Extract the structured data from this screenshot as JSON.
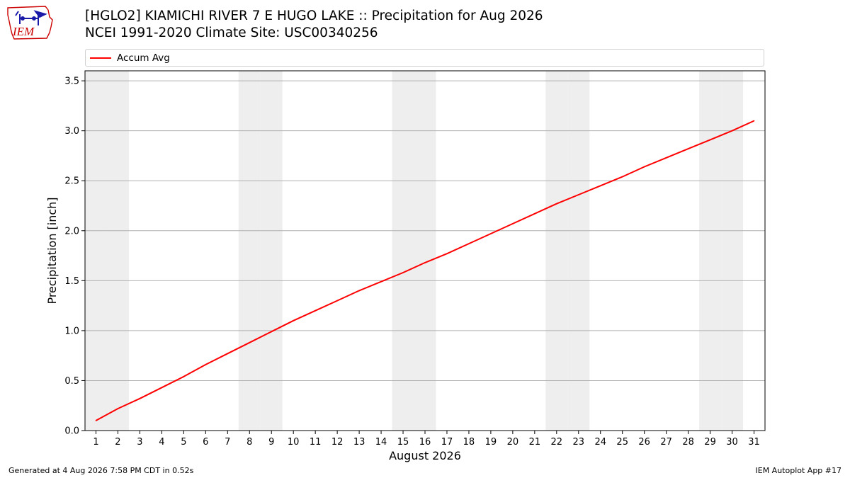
{
  "header": {
    "logo_text": "IEM",
    "title_line1": "[HGLO2] KIAMICHI RIVER 7 E HUGO LAKE :: Precipitation for Aug 2026",
    "title_line2": "NCEI 1991-2020 Climate Site: USC00340256"
  },
  "footer": {
    "left": "Generated at 4 Aug 2026 7:58 PM CDT in 0.52s",
    "right": "IEM Autoplot App #17"
  },
  "colors": {
    "series": "#ff0000",
    "weekend_band": "#eeeeee",
    "grid": "#b0b0b0",
    "logo": "#cc0000"
  },
  "chart_data": {
    "type": "line",
    "xlabel": "August 2026",
    "ylabel": "Precipitation [inch]",
    "xlim": [
      0.5,
      31.5
    ],
    "ylim": [
      0,
      3.6
    ],
    "x": [
      1,
      2,
      3,
      4,
      5,
      6,
      7,
      8,
      9,
      10,
      11,
      12,
      13,
      14,
      15,
      16,
      17,
      18,
      19,
      20,
      21,
      22,
      23,
      24,
      25,
      26,
      27,
      28,
      29,
      30,
      31
    ],
    "x_tick_labels": [
      "1",
      "2",
      "3",
      "4",
      "5",
      "6",
      "7",
      "8",
      "9",
      "10",
      "11",
      "12",
      "13",
      "14",
      "15",
      "16",
      "17",
      "18",
      "19",
      "20",
      "21",
      "22",
      "23",
      "24",
      "25",
      "26",
      "27",
      "28",
      "29",
      "30",
      "31"
    ],
    "y_ticks": [
      0.0,
      0.5,
      1.0,
      1.5,
      2.0,
      2.5,
      3.0,
      3.5
    ],
    "y_tick_labels": [
      "0.0",
      "0.5",
      "1.0",
      "1.5",
      "2.0",
      "2.5",
      "3.0",
      "3.5"
    ],
    "grid": "horizontal",
    "legend": "top",
    "weekend_days": [
      1,
      2,
      8,
      9,
      15,
      16,
      22,
      23,
      29,
      30
    ],
    "series": [
      {
        "name": "Accum Avg",
        "values": [
          0.1,
          0.22,
          0.32,
          0.43,
          0.54,
          0.66,
          0.77,
          0.88,
          0.99,
          1.1,
          1.2,
          1.3,
          1.4,
          1.49,
          1.58,
          1.68,
          1.77,
          1.87,
          1.97,
          2.07,
          2.17,
          2.27,
          2.36,
          2.45,
          2.54,
          2.64,
          2.73,
          2.82,
          2.91,
          3.0,
          3.1
        ]
      }
    ]
  }
}
